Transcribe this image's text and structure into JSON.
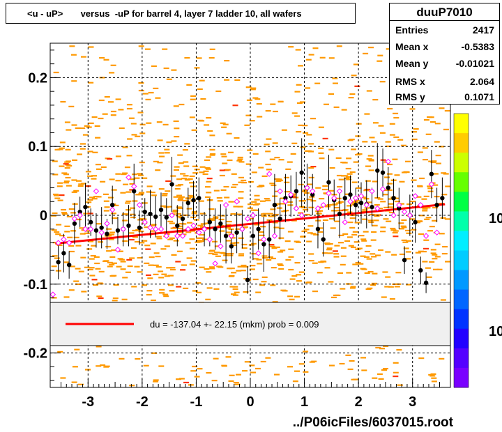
{
  "title": "<u - uP>       versus  -uP for barrel 4, layer 7 ladder 10, all wafers",
  "stats": {
    "name": "duuP7010",
    "rows": [
      {
        "label": "Entries",
        "value": "2417"
      },
      {
        "label": "Mean x",
        "value": "-0.5383"
      },
      {
        "label": "Mean y",
        "value": "-0.01021"
      },
      {
        "label": "RMS x",
        "value": "2.064"
      },
      {
        "label": "RMS y",
        "value": "0.1071"
      }
    ]
  },
  "legend": {
    "label": "du = -137.04 +- 22.15 (mkm) prob = 0.009",
    "color": "#ff0000"
  },
  "footer": "../P06icFiles/6037015.root",
  "colors": {
    "cell": "#ff9900",
    "profile_filled": "#000000",
    "profile_open": "#ff00ff",
    "fit": "#ff0000"
  },
  "chart_data": {
    "type": "scatter",
    "xlim": [
      -3.7,
      3.7
    ],
    "ylim": [
      -0.25,
      0.25
    ],
    "xticks": [
      -3,
      -2,
      -1,
      0,
      1,
      2,
      3
    ],
    "yticks": [
      -0.2,
      -0.1,
      0,
      0.1,
      0.2
    ],
    "ytick_labels": [
      "-0.2",
      "-0.1",
      "0",
      "0.1",
      "0.2"
    ],
    "grid": true,
    "colorbar_labels": [
      "10",
      "10"
    ],
    "fit_line": {
      "x": [
        -3.6,
        3.6
      ],
      "y": [
        -0.041,
        0.016
      ]
    },
    "profile_filled": {
      "x": [
        -3.55,
        -3.45,
        -3.35,
        -3.25,
        -3.15,
        -3.05,
        -2.95,
        -2.85,
        -2.75,
        -2.65,
        -2.55,
        -2.45,
        -2.35,
        -2.25,
        -2.15,
        -2.05,
        -1.95,
        -1.85,
        -1.75,
        -1.65,
        -1.55,
        -1.45,
        -1.35,
        -1.25,
        -1.15,
        -1.05,
        -0.95,
        -0.85,
        -0.75,
        -0.65,
        -0.55,
        -0.45,
        -0.35,
        -0.25,
        -0.15,
        -0.05,
        0.05,
        0.15,
        0.25,
        0.35,
        0.45,
        0.55,
        0.65,
        0.75,
        0.85,
        0.95,
        1.05,
        1.15,
        1.25,
        1.35,
        1.45,
        1.55,
        1.65,
        1.75,
        1.85,
        1.95,
        2.05,
        2.15,
        2.25,
        2.35,
        2.45,
        2.55,
        2.65,
        2.75,
        2.85,
        2.95,
        3.05,
        3.15,
        3.25,
        3.35,
        3.45,
        3.55
      ],
      "y": [
        -0.068,
        -0.055,
        -0.072,
        -0.012,
        0.005,
        0.012,
        -0.01,
        -0.022,
        -0.018,
        -0.027,
        0.015,
        -0.022,
        -0.02,
        -0.015,
        0.035,
        -0.018,
        0.005,
        0.002,
        -0.002,
        0.008,
        -0.003,
        0.045,
        -0.015,
        -0.005,
        0.018,
        0.022,
        0.025,
        -0.02,
        -0.01,
        -0.02,
        -0.012,
        -0.03,
        -0.045,
        -0.025,
        -0.02,
        -0.094,
        -0.03,
        -0.02,
        -0.042,
        -0.035,
        0.015,
        -0.005,
        0.025,
        0.028,
        0.035,
        0.062,
        0.04,
        0.03,
        -0.02,
        -0.035,
        0.048,
        0.022,
        0.002,
        0.025,
        0.03,
        0.015,
        0.018,
        0.016,
        0.012,
        0.065,
        0.062,
        0.04,
        0.025,
        0.01,
        -0.065,
        0.0,
        -0.01,
        -0.08,
        -0.098,
        0.06,
        0.015,
        0.025
      ],
      "err": [
        0.025,
        0.028,
        0.02,
        0.03,
        0.022,
        0.035,
        0.02,
        0.025,
        0.03,
        0.022,
        0.028,
        0.02,
        0.025,
        0.03,
        0.04,
        0.025,
        0.02,
        0.035,
        0.03,
        0.025,
        0.028,
        0.04,
        0.03,
        0.025,
        0.022,
        0.028,
        0.03,
        0.025,
        0.035,
        0.03,
        0.028,
        0.04,
        0.025,
        0.03,
        0.028,
        0.02,
        0.035,
        0.03,
        0.04,
        0.028,
        0.045,
        0.03,
        0.035,
        0.03,
        0.028,
        0.05,
        0.035,
        0.03,
        0.028,
        0.025,
        0.04,
        0.03,
        0.035,
        0.03,
        0.028,
        0.025,
        0.03,
        0.035,
        0.028,
        0.04,
        0.035,
        0.03,
        0.028,
        0.03,
        0.02,
        0.03,
        0.03,
        0.02,
        0.015,
        0.035,
        0.025,
        0.03
      ]
    },
    "profile_open": {
      "x": [
        -3.65,
        -3.55,
        -3.45,
        -3.35,
        -3.25,
        -3.15,
        -3.05,
        -2.95,
        -2.85,
        -2.75,
        -2.65,
        -2.55,
        -2.45,
        -2.35,
        -2.25,
        -2.15,
        -2.05,
        -1.95,
        -1.85,
        -1.75,
        -1.65,
        -1.55,
        -1.45,
        -1.35,
        -1.25,
        -1.15,
        -1.05,
        -0.95,
        -0.85,
        -0.75,
        -0.65,
        -0.55,
        -0.45,
        -0.35,
        -0.25,
        -0.15,
        -0.05,
        0.05,
        0.15,
        0.25,
        0.35,
        0.45,
        0.55,
        0.65,
        0.75,
        0.85,
        0.95,
        1.05,
        1.15,
        1.25,
        1.35,
        1.45,
        1.55,
        1.65,
        1.75,
        1.85,
        1.95,
        2.05,
        2.15,
        2.25,
        2.35,
        2.45,
        2.55,
        2.65,
        2.75,
        2.85,
        2.95,
        3.05,
        3.15,
        3.25,
        3.35,
        3.45
      ],
      "y": [
        -0.115,
        -0.04,
        -0.035,
        -0.04,
        -0.005,
        0.0,
        -0.02,
        -0.02,
        0.035,
        -0.025,
        -0.012,
        0.008,
        -0.05,
        -0.02,
        0.055,
        0.042,
        0.015,
        -0.01,
        -0.018,
        -0.02,
        -0.02,
        -0.03,
        0.0,
        -0.03,
        -0.03,
        -0.02,
        -0.015,
        -0.025,
        -0.02,
        -0.035,
        -0.07,
        -0.045,
        0.015,
        -0.03,
        0.02,
        -0.02,
        -0.005,
        0.0,
        -0.055,
        -0.035,
        0.06,
        -0.03,
        0.035,
        0.02,
        0.03,
        0.01,
        0.0,
        0.04,
        0.035,
        0.01,
        0.015,
        0.032,
        0.025,
        0.035,
        -0.01,
        0.02,
        0.025,
        0.028,
        0.015,
        0.035,
        0.01,
        0.038,
        0.078,
        0.0,
        0.015,
        0.005,
        0.0,
        0.028,
        0.015,
        -0.03,
        0.045,
        -0.025
      ]
    }
  }
}
